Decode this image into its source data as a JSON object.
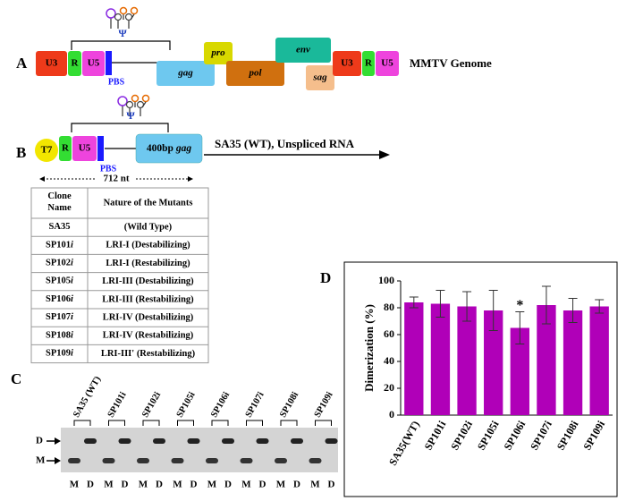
{
  "panel_a": {
    "label": "A",
    "psi": "Ψ",
    "blocks": [
      "U3",
      "R",
      "U5",
      "gag",
      "pro",
      "pol",
      "env",
      "sag",
      "U3",
      "R",
      "U5"
    ],
    "pbs": "PBS",
    "genome": "MMTV Genome"
  },
  "panel_b": {
    "label": "B",
    "psi": "Ψ",
    "t7": "T7",
    "blocks": [
      "R",
      "U5"
    ],
    "pbs": "PBS",
    "insert": "400bp",
    "insert_gene": "gag",
    "rna": "SA35 (WT), Unspliced RNA",
    "length": "712 nt"
  },
  "table": {
    "header": [
      "Clone Name",
      "Nature of the Mutants"
    ],
    "rows": [
      {
        "clone": "SA35",
        "nature": "(Wild Type)"
      },
      {
        "clone": "SP101",
        "suffix": "i",
        "nature": "LRI-I (Destabilizing)"
      },
      {
        "clone": "SP102",
        "suffix": "i",
        "nature": "LRI-I (Restabilizing)"
      },
      {
        "clone": "SP105",
        "suffix": "i",
        "nature": "LRI-III (Destabilizing)"
      },
      {
        "clone": "SP106",
        "suffix": "i",
        "nature": "LRI-III (Restabilizing)"
      },
      {
        "clone": "SP107",
        "suffix": "i",
        "nature": "LRI-IV (Destabilizing)"
      },
      {
        "clone": "SP108",
        "suffix": "i",
        "nature": "LRI-IV (Restabilizing)"
      },
      {
        "clone": "SP109",
        "suffix": "i",
        "nature": "LRI-III' (Restabilizing)"
      }
    ]
  },
  "panel_c": {
    "label": "C",
    "samples": [
      "SA35 (WT)",
      "SP101i",
      "SP102i",
      "SP105i",
      "SP106i",
      "SP107i",
      "SP108i",
      "SP109i"
    ],
    "markers": [
      "D",
      "M"
    ],
    "lane_letters": [
      "M",
      "D"
    ]
  },
  "panel_d": {
    "label": "D"
  },
  "chart_data": {
    "type": "bar",
    "ylabel": "Dimerization (%)",
    "categories": [
      "SA35(WT)",
      "SP101i",
      "SP102i",
      "SP105i",
      "SP106i",
      "SP107i",
      "SP108i",
      "SP109i"
    ],
    "values": [
      84,
      83,
      81,
      78,
      65,
      82,
      78,
      81
    ],
    "errors": [
      4,
      10,
      11,
      15,
      12,
      14,
      9,
      5
    ],
    "color": "#b000b8",
    "ylim": [
      0,
      100
    ],
    "yticks": [
      0,
      20,
      40,
      60,
      80,
      100
    ],
    "annotations": [
      {
        "text": "*",
        "category": "SP106i"
      }
    ]
  }
}
